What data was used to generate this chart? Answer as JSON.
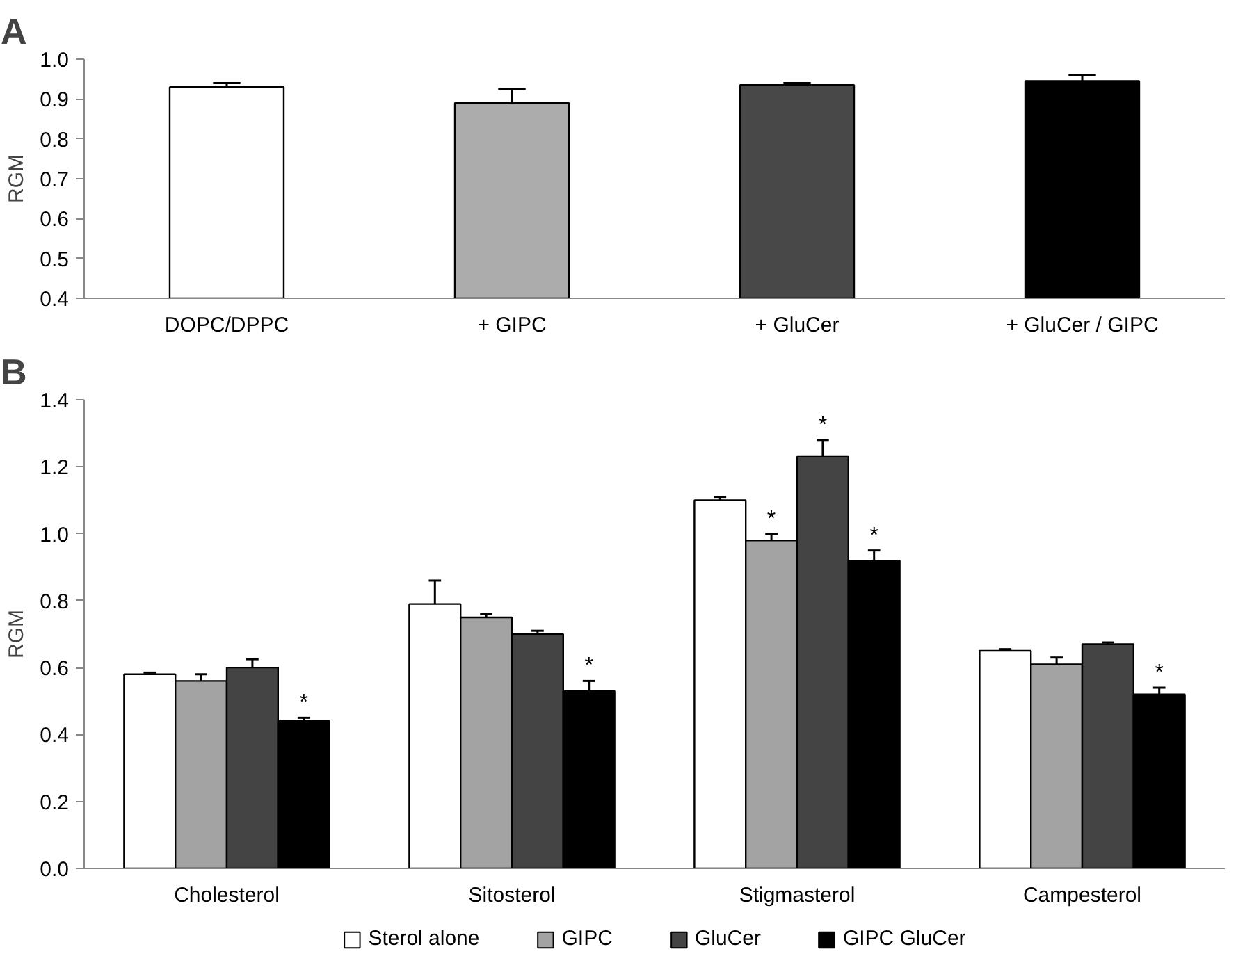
{
  "chart_data": [
    {
      "type": "bar",
      "title": "A",
      "ylabel": "RGM",
      "categories": [
        "DOPC/DPPC",
        "+ GIPC",
        "+ GluCer",
        "+ GluCer / GIPC"
      ],
      "values": [
        0.93,
        0.89,
        0.935,
        0.945
      ],
      "colors": [
        "#ffffff",
        "#acacac",
        "#484848",
        "#000000"
      ],
      "errors": [
        [
          0.93,
          0.94
        ],
        [
          0.89,
          0.925
        ],
        [
          0.935,
          0.94
        ],
        [
          0.945,
          0.96
        ]
      ],
      "ylim": [
        0.4,
        1.0
      ],
      "yticks": [
        {
          "value": 0.4,
          "label": "0.4"
        },
        {
          "value": 0.5,
          "label": "0.5"
        },
        {
          "value": 0.6,
          "label": "0.6"
        },
        {
          "value": 0.7,
          "label": "0.7"
        },
        {
          "value": 0.8,
          "label": "0.8"
        },
        {
          "value": 0.9,
          "label": "0.9"
        },
        {
          "value": 1.0,
          "label": "1.0"
        }
      ],
      "grid": false,
      "legend": false
    },
    {
      "type": "bar",
      "title": "B",
      "ylabel": "RGM",
      "categories": [
        "Cholesterol",
        "Sitosterol",
        "Stigmasterol",
        "Campesterol"
      ],
      "series": [
        {
          "name": "Sterol alone",
          "color": "#ffffff",
          "values": [
            0.58,
            0.79,
            1.1,
            0.65
          ],
          "errors": [
            [
              0.58,
              0.585
            ],
            [
              0.79,
              0.86
            ],
            [
              1.1,
              1.11
            ],
            [
              0.65,
              0.655
            ]
          ]
        },
        {
          "name": "GIPC",
          "color": "#a3a3a3",
          "values": [
            0.56,
            0.75,
            0.98,
            0.61
          ],
          "value_labels": [
            null,
            null,
            "*",
            null
          ],
          "errors": [
            [
              0.56,
              0.58
            ],
            [
              0.75,
              0.76
            ],
            [
              0.98,
              1.0
            ],
            [
              0.61,
              0.63
            ]
          ]
        },
        {
          "name": "GluCer",
          "color": "#444444",
          "values": [
            0.6,
            0.7,
            1.23,
            0.67
          ],
          "value_labels": [
            null,
            null,
            "*",
            null
          ],
          "errors": [
            [
              0.6,
              0.625
            ],
            [
              0.7,
              0.71
            ],
            [
              1.23,
              1.28
            ],
            [
              0.67,
              0.675
            ]
          ]
        },
        {
          "name": "GIPC GluCer",
          "color": "#000000",
          "values": [
            0.44,
            0.53,
            0.92,
            0.52
          ],
          "value_labels": [
            "*",
            "*",
            "*",
            "*"
          ],
          "errors": [
            [
              0.44,
              0.45
            ],
            [
              0.53,
              0.56
            ],
            [
              0.92,
              0.95
            ],
            [
              0.52,
              0.54
            ]
          ]
        }
      ],
      "ylim": [
        0.0,
        1.4
      ],
      "yticks": [
        {
          "value": 0.0,
          "label": "0.0"
        },
        {
          "value": 0.2,
          "label": "0.2"
        },
        {
          "value": 0.4,
          "label": "0.4"
        },
        {
          "value": 0.6,
          "label": "0.6"
        },
        {
          "value": 0.8,
          "label": "0.8"
        },
        {
          "value": 1.0,
          "label": "1.0"
        },
        {
          "value": 1.2,
          "label": "1.2"
        },
        {
          "value": 1.4,
          "label": "1.4"
        }
      ],
      "grid": false,
      "legend": "bottom"
    }
  ]
}
